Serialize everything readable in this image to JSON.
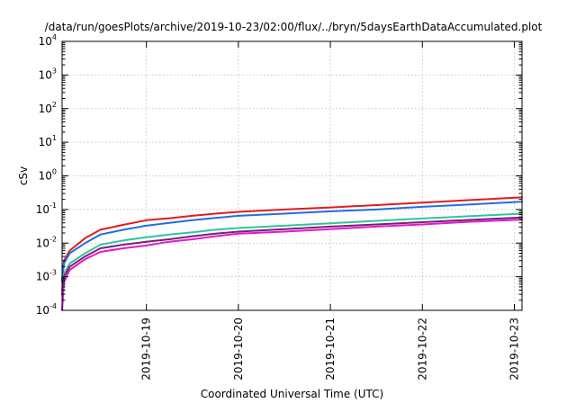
{
  "chart_data": {
    "type": "line",
    "title": "/data/run/goesPlots/archive/2019-10-23/02:00/flux/../bryn/5daysEarthDataAccumulated.plot",
    "xlabel": "Coordinated Universal Time (UTC)",
    "ylabel": "cSv",
    "yscale": "log",
    "ylim_exponents": [
      -4,
      4
    ],
    "y_ticks": [
      {
        "base": "10",
        "exp": "-4"
      },
      {
        "base": "10",
        "exp": "-3"
      },
      {
        "base": "10",
        "exp": "-2"
      },
      {
        "base": "10",
        "exp": "-1"
      },
      {
        "base": "10",
        "exp": "0"
      },
      {
        "base": "10",
        "exp": "1"
      },
      {
        "base": "10",
        "exp": "2"
      },
      {
        "base": "10",
        "exp": "3"
      },
      {
        "base": "10",
        "exp": "4"
      }
    ],
    "x_range": [
      "2019-10-18T02:00",
      "2019-10-23T02:00"
    ],
    "x_ticks": [
      "2019-10-19",
      "2019-10-20",
      "2019-10-21",
      "2019-10-22",
      "2019-10-23"
    ],
    "grid": true,
    "series": [
      {
        "color": "#e41a1c",
        "x": [
          "2019-10-18T02:00",
          "2019-10-18T02:30",
          "2019-10-18T04:00",
          "2019-10-18T08:00",
          "2019-10-18T12:00",
          "2019-10-18T18:00",
          "2019-10-19T00:00",
          "2019-10-19T06:00",
          "2019-10-19T12:00",
          "2019-10-19T18:00",
          "2019-10-20T00:00",
          "2019-10-20T12:00",
          "2019-10-21T00:00",
          "2019-10-21T12:00",
          "2019-10-22T00:00",
          "2019-10-22T12:00",
          "2019-10-23T02:00"
        ],
        "y": [
          0.0008,
          0.003,
          0.006,
          0.014,
          0.025,
          0.035,
          0.048,
          0.055,
          0.065,
          0.075,
          0.085,
          0.1,
          0.115,
          0.135,
          0.16,
          0.19,
          0.23
        ]
      },
      {
        "color": "#1f6fe0",
        "x": [
          "2019-10-18T02:00",
          "2019-10-18T02:30",
          "2019-10-18T04:00",
          "2019-10-18T08:00",
          "2019-10-18T12:00",
          "2019-10-18T18:00",
          "2019-10-19T00:00",
          "2019-10-19T06:00",
          "2019-10-19T12:00",
          "2019-10-19T18:00",
          "2019-10-20T00:00",
          "2019-10-20T12:00",
          "2019-10-21T00:00",
          "2019-10-21T12:00",
          "2019-10-22T00:00",
          "2019-10-22T12:00",
          "2019-10-23T02:00"
        ],
        "y": [
          0.0007,
          0.0025,
          0.005,
          0.01,
          0.018,
          0.025,
          0.033,
          0.04,
          0.048,
          0.056,
          0.065,
          0.075,
          0.088,
          0.1,
          0.12,
          0.14,
          0.17
        ]
      },
      {
        "color": "#2ec4a0",
        "x": [
          "2019-10-18T02:00",
          "2019-10-18T02:30",
          "2019-10-18T04:00",
          "2019-10-18T08:00",
          "2019-10-18T12:00",
          "2019-10-18T18:00",
          "2019-10-19T00:00",
          "2019-10-19T06:00",
          "2019-10-19T12:00",
          "2019-10-19T18:00",
          "2019-10-20T00:00",
          "2019-10-20T12:00",
          "2019-10-21T00:00",
          "2019-10-21T12:00",
          "2019-10-22T00:00",
          "2019-10-22T12:00",
          "2019-10-23T02:00"
        ],
        "y": [
          0.0004,
          0.0012,
          0.0025,
          0.005,
          0.009,
          0.012,
          0.015,
          0.018,
          0.021,
          0.025,
          0.028,
          0.033,
          0.039,
          0.046,
          0.054,
          0.063,
          0.075
        ]
      },
      {
        "color": "#7a1f70",
        "x": [
          "2019-10-18T02:00",
          "2019-10-18T02:30",
          "2019-10-18T04:00",
          "2019-10-18T08:00",
          "2019-10-18T12:00",
          "2019-10-18T18:00",
          "2019-10-19T00:00",
          "2019-10-19T06:00",
          "2019-10-19T12:00",
          "2019-10-19T18:00",
          "2019-10-20T00:00",
          "2019-10-20T12:00",
          "2019-10-21T00:00",
          "2019-10-21T12:00",
          "2019-10-22T00:00",
          "2019-10-22T12:00",
          "2019-10-23T02:00"
        ],
        "y": [
          0.0003,
          0.001,
          0.002,
          0.004,
          0.007,
          0.009,
          0.011,
          0.013,
          0.016,
          0.019,
          0.022,
          0.026,
          0.031,
          0.036,
          0.042,
          0.049,
          0.058
        ]
      },
      {
        "color": "#e01ad0",
        "x": [
          "2019-10-18T02:00",
          "2019-10-18T02:30",
          "2019-10-18T04:00",
          "2019-10-18T08:00",
          "2019-10-18T12:00",
          "2019-10-18T18:00",
          "2019-10-19T00:00",
          "2019-10-19T06:00",
          "2019-10-19T12:00",
          "2019-10-19T18:00",
          "2019-10-20T00:00",
          "2019-10-20T12:00",
          "2019-10-21T00:00",
          "2019-10-21T12:00",
          "2019-10-22T00:00",
          "2019-10-22T12:00",
          "2019-10-23T02:00"
        ],
        "y": [
          0.0001,
          0.0007,
          0.0016,
          0.0033,
          0.0055,
          0.007,
          0.0085,
          0.011,
          0.013,
          0.016,
          0.019,
          0.022,
          0.026,
          0.031,
          0.036,
          0.043,
          0.05
        ]
      }
    ]
  }
}
